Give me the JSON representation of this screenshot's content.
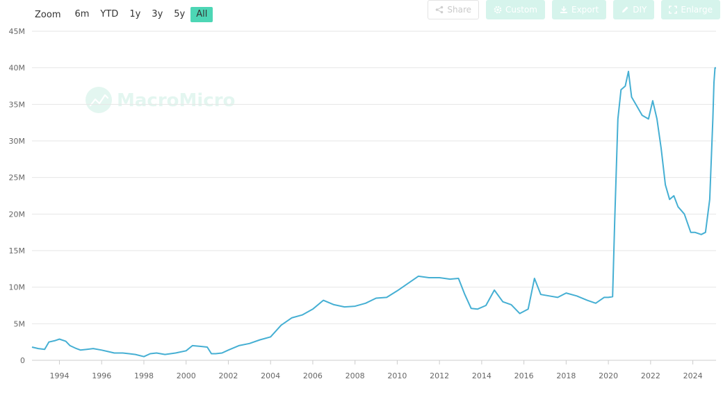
{
  "zoom": {
    "label": "Zoom",
    "buttons": [
      "6m",
      "YTD",
      "1y",
      "3y",
      "5y",
      "All"
    ],
    "active": "All",
    "active_color": "#4dd6b5"
  },
  "toolbar": {
    "share_label": "Share",
    "custom_label": "Custom",
    "export_label": "Export",
    "diy_label": "DIY",
    "enlarge_label": "Enlarge"
  },
  "watermark": {
    "text": "MacroMicro"
  },
  "chart_data": {
    "type": "line",
    "title": "",
    "xlabel": "",
    "ylabel": "",
    "ylim": [
      0,
      45000000
    ],
    "xlim": [
      1992.7,
      2025.1
    ],
    "y_ticks": [
      "0",
      "5M",
      "10M",
      "15M",
      "20M",
      "25M",
      "30M",
      "35M",
      "40M",
      "45M"
    ],
    "x_ticks": [
      "1994",
      "1996",
      "1998",
      "2000",
      "2002",
      "2004",
      "2006",
      "2008",
      "2010",
      "2012",
      "2014",
      "2016",
      "2018",
      "2020",
      "2022",
      "2024"
    ],
    "grid": "horizontal",
    "line_color": "#45afd3",
    "series": [
      {
        "x": [
          1992.7,
          1993.0,
          1993.3,
          1993.5,
          1993.8,
          1994.0,
          1994.3,
          1994.5,
          1994.8,
          1995.0,
          1995.3,
          1995.6,
          1996.0,
          1996.3,
          1996.6,
          1997.0,
          1997.3,
          1997.6,
          1998.0,
          1998.3,
          1998.6,
          1999.0,
          1999.5,
          2000.0,
          2000.3,
          2000.7,
          2001.0,
          2001.2,
          2001.4,
          2001.7,
          2002.0,
          2002.5,
          2003.0,
          2003.5,
          2004.0,
          2004.5,
          2005.0,
          2005.5,
          2006.0,
          2006.5,
          2007.0,
          2007.5,
          2008.0,
          2008.5,
          2009.0,
          2009.5,
          2010.0,
          2010.5,
          2011.0,
          2011.5,
          2012.0,
          2012.5,
          2012.9,
          2013.2,
          2013.5,
          2013.8,
          2014.2,
          2014.6,
          2015.0,
          2015.4,
          2015.8,
          2016.2,
          2016.5,
          2016.8,
          2017.2,
          2017.6,
          2018.0,
          2018.5,
          2019.0,
          2019.4,
          2019.8,
          2020.0,
          2020.2,
          2020.3,
          2020.45,
          2020.6,
          2020.8,
          2020.95,
          2021.1,
          2021.3,
          2021.6,
          2021.9,
          2022.1,
          2022.3,
          2022.5,
          2022.7,
          2022.9,
          2023.1,
          2023.3,
          2023.6,
          2023.9,
          2024.1,
          2024.4,
          2024.6,
          2024.8,
          2024.95,
          2025.0,
          2025.05,
          2025.1
        ],
        "y": [
          1800000,
          1600000,
          1500000,
          2500000,
          2700000,
          2900000,
          2600000,
          2000000,
          1600000,
          1400000,
          1500000,
          1600000,
          1400000,
          1200000,
          1000000,
          1000000,
          900000,
          800000,
          500000,
          900000,
          1000000,
          800000,
          1000000,
          1300000,
          2000000,
          1900000,
          1800000,
          900000,
          900000,
          1000000,
          1400000,
          2000000,
          2300000,
          2800000,
          3200000,
          4800000,
          5800000,
          6200000,
          7000000,
          8200000,
          7600000,
          7300000,
          7400000,
          7800000,
          8500000,
          8600000,
          9500000,
          10500000,
          11500000,
          11300000,
          11300000,
          11100000,
          11200000,
          9000000,
          7100000,
          7000000,
          7500000,
          9600000,
          8000000,
          7600000,
          6400000,
          7000000,
          11200000,
          9000000,
          8800000,
          8600000,
          9200000,
          8800000,
          8200000,
          7800000,
          8600000,
          8600000,
          8700000,
          19000000,
          33000000,
          37000000,
          37500000,
          39500000,
          36000000,
          35000000,
          33500000,
          33000000,
          35500000,
          33000000,
          29000000,
          24000000,
          22000000,
          22500000,
          21000000,
          20000000,
          17500000,
          17500000,
          17200000,
          17500000,
          22000000,
          33000000,
          38000000,
          40000000,
          40000000
        ]
      }
    ]
  }
}
